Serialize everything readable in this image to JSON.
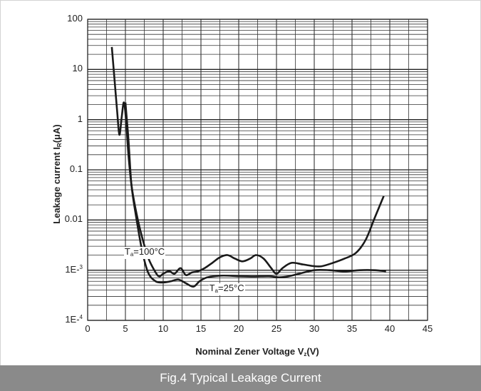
{
  "caption": "Fig.4 Typical Leakage Current",
  "chart_data": {
    "type": "line",
    "title": "",
    "xlabel": {
      "main": "Nominal Zener Voltage  V",
      "sub": "z",
      "tail": "(V)"
    },
    "ylabel": {
      "main": "Leakage current  I",
      "sub": "R",
      "tail": "(μA)"
    },
    "xlim": [
      0,
      45
    ],
    "ylim": [
      0.0001,
      100
    ],
    "yscale": "log",
    "grid": true,
    "x_ticks": [
      "0",
      "5",
      "10",
      "15",
      "20",
      "25",
      "30",
      "35",
      "40",
      "45"
    ],
    "y_ticks": [
      {
        "value": 100,
        "label": "100"
      },
      {
        "value": 10,
        "label": "10"
      },
      {
        "value": 1,
        "label": "1"
      },
      {
        "value": 0.1,
        "label": "0.1"
      },
      {
        "value": 0.01,
        "label": "0.01"
      },
      {
        "value": 0.001,
        "label": "1E-",
        "sup": "3"
      },
      {
        "value": 0.0001,
        "label": "1E-",
        "sup": "4"
      }
    ],
    "series": [
      {
        "name": "Ta=100°C",
        "label_parts": {
          "pre": "T",
          "sub": "a",
          "post": "=100°C"
        },
        "label_at": [
          4.8,
          0.0023
        ],
        "x": [
          3.2,
          3.5,
          3.9,
          4.2,
          4.5,
          4.8,
          5.1,
          5.4,
          5.8,
          6.3,
          7.0,
          8.0,
          9.0,
          9.5,
          10.0,
          10.8,
          11.5,
          12.3,
          13.0,
          13.8,
          14.6,
          15.5,
          16.5,
          17.5,
          18.5,
          19.5,
          20.5,
          21.5,
          22.3,
          23.3,
          24.3,
          25.0,
          25.8,
          27.0,
          28.5,
          30.0,
          31.0,
          32.5,
          34.0,
          35.5,
          36.8,
          38.0,
          39.2
        ],
        "y": [
          28,
          8,
          1.5,
          0.5,
          1.1,
          2.2,
          0.9,
          0.2,
          0.05,
          0.018,
          0.006,
          0.0018,
          0.0009,
          0.00075,
          0.00085,
          0.00095,
          0.00085,
          0.0011,
          0.0008,
          0.0009,
          0.00095,
          0.0011,
          0.0014,
          0.0018,
          0.002,
          0.0017,
          0.0015,
          0.0017,
          0.002,
          0.0017,
          0.0011,
          0.00085,
          0.0011,
          0.0014,
          0.0013,
          0.0012,
          0.0012,
          0.0014,
          0.0017,
          0.0022,
          0.004,
          0.011,
          0.03
        ]
      },
      {
        "name": "Ta=25°C",
        "label_parts": {
          "pre": "T",
          "sub": "a",
          "post": "=25°C"
        },
        "label_at": [
          16.0,
          0.00043
        ],
        "x": [
          5.0,
          5.4,
          5.8,
          6.4,
          7.2,
          8.0,
          9.0,
          10.0,
          11.0,
          12.0,
          13.0,
          14.0,
          14.8,
          15.6,
          16.5,
          18.0,
          20.0,
          22.0,
          24.0,
          25.3,
          26.5,
          28.0,
          30.0,
          32.0,
          34.0,
          36.0,
          38.0,
          39.5
        ],
        "y": [
          2.2,
          0.4,
          0.05,
          0.012,
          0.0025,
          0.0009,
          0.0006,
          0.00057,
          0.0006,
          0.00065,
          0.00055,
          0.00047,
          0.0006,
          0.0007,
          0.00075,
          0.00078,
          0.00076,
          0.00075,
          0.00076,
          0.00072,
          0.00075,
          0.00085,
          0.001,
          0.001,
          0.00095,
          0.001,
          0.001,
          0.00095
        ]
      }
    ]
  }
}
